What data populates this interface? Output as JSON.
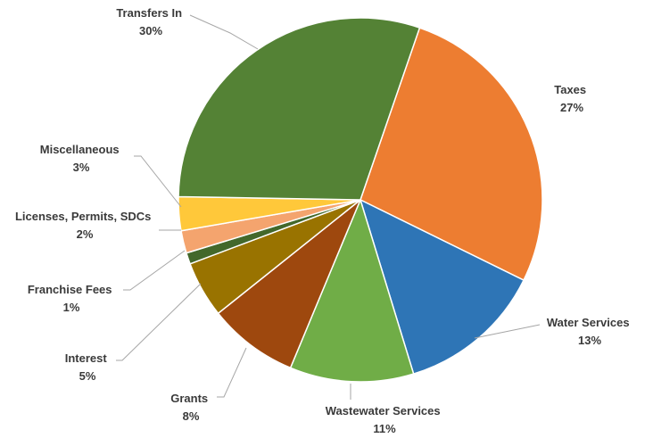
{
  "chart_data": {
    "type": "pie",
    "title": "",
    "legend": "none",
    "slices": [
      {
        "label": "Taxes",
        "value": 27,
        "value_label": "27%",
        "color": "#ED7D31"
      },
      {
        "label": "Water Services",
        "value": 13,
        "value_label": "13%",
        "color": "#2E75B6"
      },
      {
        "label": "Wastewater Services",
        "value": 11,
        "value_label": "11%",
        "color": "#70AD47"
      },
      {
        "label": "Grants",
        "value": 8,
        "value_label": "8%",
        "color": "#9E480E"
      },
      {
        "label": "Interest",
        "value": 5,
        "value_label": "5%",
        "color": "#997300"
      },
      {
        "label": "Franchise Fees",
        "value": 1,
        "value_label": "1%",
        "color": "#43682B"
      },
      {
        "label": "Licenses, Permits, SDCs",
        "value": 2,
        "value_label": "2%",
        "color": "#F4A46E"
      },
      {
        "label": "Miscellaneous",
        "value": 3,
        "value_label": "3%",
        "color": "#FFC83A"
      },
      {
        "label": "Transfers In",
        "value": 30,
        "value_label": "30%",
        "color": "#548235"
      }
    ]
  }
}
